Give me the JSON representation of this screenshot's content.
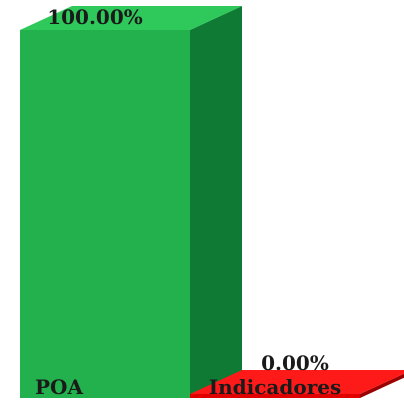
{
  "chart_data": {
    "type": "bar",
    "style": "3d",
    "categories": [
      "POA",
      "Indicadores"
    ],
    "values": [
      100.0,
      0.0
    ],
    "data_labels": [
      "100.00%",
      "0.00%"
    ],
    "ylim": [
      0,
      100
    ],
    "title": "",
    "xlabel": "",
    "ylabel": "",
    "grid": false,
    "legend": "none",
    "colors": {
      "bars": [
        "#22b14c",
        "#e00000"
      ],
      "bar_sides": [
        "#0e7a33",
        "#990000"
      ],
      "bar_tops": [
        "#2ec95a",
        "#ff1a1a"
      ],
      "label_text": "#1a1a1a"
    }
  }
}
